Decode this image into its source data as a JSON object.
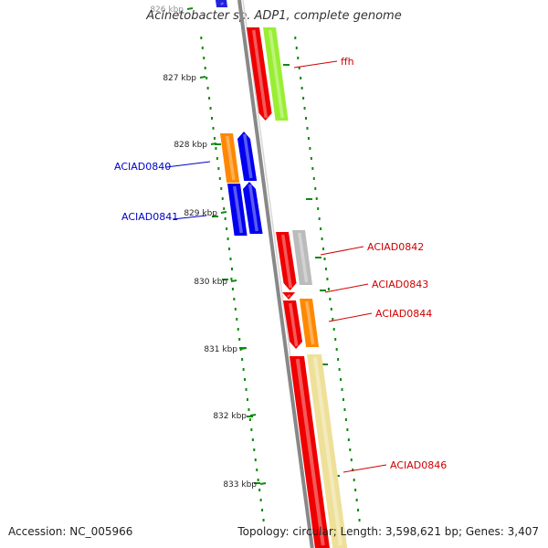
{
  "title": "Acinetobacter sp. ADP1, complete genome",
  "accession": "Accession: NC_005966",
  "topology": "Topology: circular; Length: 3,598,621 bp; Genes: 3,407",
  "ticks": [
    "826 kbp",
    "827 kbp",
    "828 kbp",
    "829 kbp",
    "830 kbp",
    "831 kbp",
    "832 kbp",
    "833 kbp"
  ],
  "genes": [
    {
      "name": "ffh",
      "color": "#d00000"
    },
    {
      "name": "ACIAD0840",
      "color": "#0000cc"
    },
    {
      "name": "ACIAD0841",
      "color": "#0000cc"
    },
    {
      "name": "ACIAD0842",
      "color": "#d00000"
    },
    {
      "name": "ACIAD0843",
      "color": "#d00000"
    },
    {
      "name": "ACIAD0844",
      "color": "#d00000"
    },
    {
      "name": "ACIAD0846",
      "color": "#d00000"
    }
  ],
  "colors": {
    "backbone": "#888888",
    "forward_strand": "#0000ee",
    "reverse_strand": "#ee0000",
    "orange_feature": "#ff8800",
    "green_feature": "#99ee33",
    "grey_feature": "#bbbbbb",
    "yellow_feature": "#eee099",
    "gc_skew": "#118811"
  }
}
